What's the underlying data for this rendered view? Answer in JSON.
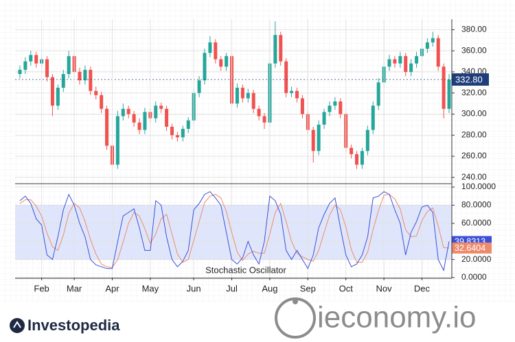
{
  "chart_data": [
    {
      "type": "candlestick",
      "open": [
        338,
        342,
        350,
        356,
        348,
        352,
        335,
        308,
        325,
        338,
        355,
        340,
        332,
        342,
        322,
        318,
        305,
        270,
        252,
        298,
        305,
        300,
        292,
        285,
        302,
        296,
        308,
        305,
        288,
        280,
        278,
        286,
        294,
        320,
        332,
        358,
        368,
        352,
        345,
        355,
        310,
        325,
        315,
        320,
        305,
        298,
        292,
        348,
        375,
        350,
        320,
        322,
        315,
        300,
        285,
        265,
        290,
        302,
        308,
        312,
        300,
        268,
        262,
        252,
        265,
        285,
        308,
        330,
        345,
        352,
        348,
        355,
        340,
        348,
        355,
        362,
        368,
        372,
        345,
        305
      ],
      "high": [
        346,
        354,
        360,
        359,
        356,
        355,
        338,
        328,
        342,
        360,
        358,
        344,
        346,
        345,
        326,
        321,
        308,
        274,
        303,
        310,
        308,
        303,
        296,
        306,
        305,
        312,
        311,
        308,
        291,
        283,
        289,
        297,
        324,
        336,
        362,
        374,
        371,
        355,
        358,
        358,
        329,
        328,
        324,
        323,
        308,
        301,
        352,
        388,
        378,
        353,
        326,
        325,
        318,
        303,
        288,
        294,
        305,
        312,
        316,
        315,
        303,
        271,
        265,
        268,
        289,
        312,
        334,
        349,
        356,
        355,
        359,
        358,
        352,
        359,
        366,
        372,
        378,
        375,
        348,
        338
      ],
      "low": [
        334,
        338,
        346,
        344,
        344,
        331,
        298,
        304,
        321,
        334,
        336,
        328,
        328,
        318,
        314,
        301,
        266,
        245,
        248,
        294,
        296,
        288,
        281,
        281,
        292,
        292,
        301,
        284,
        276,
        274,
        274,
        282,
        290,
        316,
        328,
        354,
        348,
        341,
        341,
        306,
        306,
        311,
        311,
        301,
        294,
        286,
        288,
        344,
        346,
        316,
        316,
        311,
        296,
        281,
        254,
        261,
        286,
        298,
        304,
        296,
        264,
        258,
        248,
        248,
        261,
        281,
        304,
        326,
        341,
        344,
        344,
        336,
        336,
        344,
        351,
        358,
        364,
        341,
        296,
        301
      ],
      "close": [
        342,
        350,
        356,
        348,
        352,
        335,
        308,
        325,
        338,
        355,
        340,
        332,
        342,
        322,
        318,
        305,
        270,
        252,
        298,
        305,
        300,
        292,
        285,
        302,
        296,
        308,
        305,
        288,
        280,
        278,
        286,
        294,
        320,
        332,
        358,
        368,
        352,
        345,
        355,
        310,
        325,
        315,
        320,
        305,
        298,
        292,
        348,
        375,
        350,
        320,
        322,
        315,
        300,
        285,
        265,
        290,
        302,
        308,
        312,
        300,
        268,
        262,
        252,
        265,
        285,
        308,
        330,
        345,
        352,
        348,
        355,
        340,
        348,
        355,
        362,
        368,
        372,
        345,
        305,
        332.8
      ],
      "up_color": "#26a69a",
      "down_color": "#ef5350",
      "ylim": [
        234,
        390
      ],
      "yticks": [
        {
          "value": 240,
          "label": "240.00"
        },
        {
          "value": 260,
          "label": "260.00"
        },
        {
          "value": 280,
          "label": "280.00"
        },
        {
          "value": 300,
          "label": "300.00"
        },
        {
          "value": 320,
          "label": "320.00"
        },
        {
          "value": 340,
          "label": "340.00"
        },
        {
          "value": 360,
          "label": "360.00"
        },
        {
          "value": 380,
          "label": "380.00"
        }
      ],
      "grid": true,
      "last_price": {
        "value": 332.8,
        "label": "332.80",
        "color": "#1f3d7a"
      }
    },
    {
      "type": "line",
      "title": "Stochastic Oscillator",
      "categories": [
        null,
        null,
        null,
        null,
        "Feb",
        null,
        null,
        null,
        null,
        null,
        "Mar",
        null,
        null,
        null,
        null,
        null,
        null,
        "Apr",
        null,
        null,
        null,
        null,
        null,
        null,
        "May",
        null,
        null,
        null,
        null,
        null,
        null,
        null,
        "Jun",
        null,
        null,
        null,
        null,
        null,
        null,
        "Jul",
        null,
        null,
        null,
        null,
        null,
        null,
        "Aug",
        null,
        null,
        null,
        null,
        null,
        null,
        "Sep",
        null,
        null,
        null,
        null,
        null,
        null,
        "Oct",
        null,
        null,
        null,
        null,
        null,
        null,
        "Nov",
        null,
        null,
        null,
        null,
        null,
        null,
        "Dec",
        null,
        null,
        null,
        null,
        null
      ],
      "series": [
        {
          "color": "#3b4fd8",
          "values": [
            85,
            90,
            82,
            65,
            58,
            25,
            20,
            45,
            75,
            92,
            80,
            60,
            45,
            20,
            14,
            12,
            10,
            10,
            40,
            68,
            72,
            76,
            55,
            30,
            30,
            85,
            80,
            45,
            20,
            12,
            18,
            30,
            75,
            82,
            92,
            95,
            88,
            80,
            50,
            20,
            15,
            22,
            40,
            25,
            15,
            40,
            90,
            85,
            70,
            30,
            20,
            30,
            20,
            10,
            25,
            55,
            70,
            82,
            88,
            55,
            25,
            12,
            15,
            25,
            45,
            88,
            90,
            95,
            92,
            75,
            60,
            25,
            50,
            62,
            78,
            80,
            72,
            20,
            8,
            39.8313
          ]
        },
        {
          "color": "#ee8a6c",
          "values": [
            82,
            86,
            86,
            79,
            68,
            49,
            34,
            30,
            47,
            71,
            82,
            77,
            62,
            42,
            26,
            15,
            12,
            11,
            20,
            39,
            60,
            72,
            68,
            54,
            38,
            48,
            65,
            70,
            48,
            26,
            17,
            20,
            41,
            62,
            83,
            90,
            92,
            88,
            73,
            50,
            28,
            19,
            26,
            29,
            27,
            27,
            48,
            72,
            82,
            62,
            40,
            27,
            23,
            20,
            18,
            30,
            50,
            69,
            80,
            75,
            56,
            31,
            17,
            17,
            28,
            53,
            74,
            91,
            92,
            87,
            76,
            53,
            45,
            46,
            63,
            73,
            77,
            57,
            33,
            32.6404
          ]
        }
      ],
      "ylim": [
        0,
        100
      ],
      "yticks": [
        {
          "value": 0,
          "label": "0.0000"
        },
        {
          "value": 20,
          "label": "20.0000"
        },
        {
          "value": 40,
          "label": "40.0000"
        },
        {
          "value": 60,
          "label": "60.0000"
        },
        {
          "value": 80,
          "label": "80.0000"
        },
        {
          "value": 100,
          "label": "100.0000"
        }
      ],
      "band": [
        20,
        80
      ],
      "band_color": "#dfe6fb",
      "grid": true
    }
  ],
  "branding": {
    "left": "Investopedia",
    "right": "ieconomy.io"
  }
}
